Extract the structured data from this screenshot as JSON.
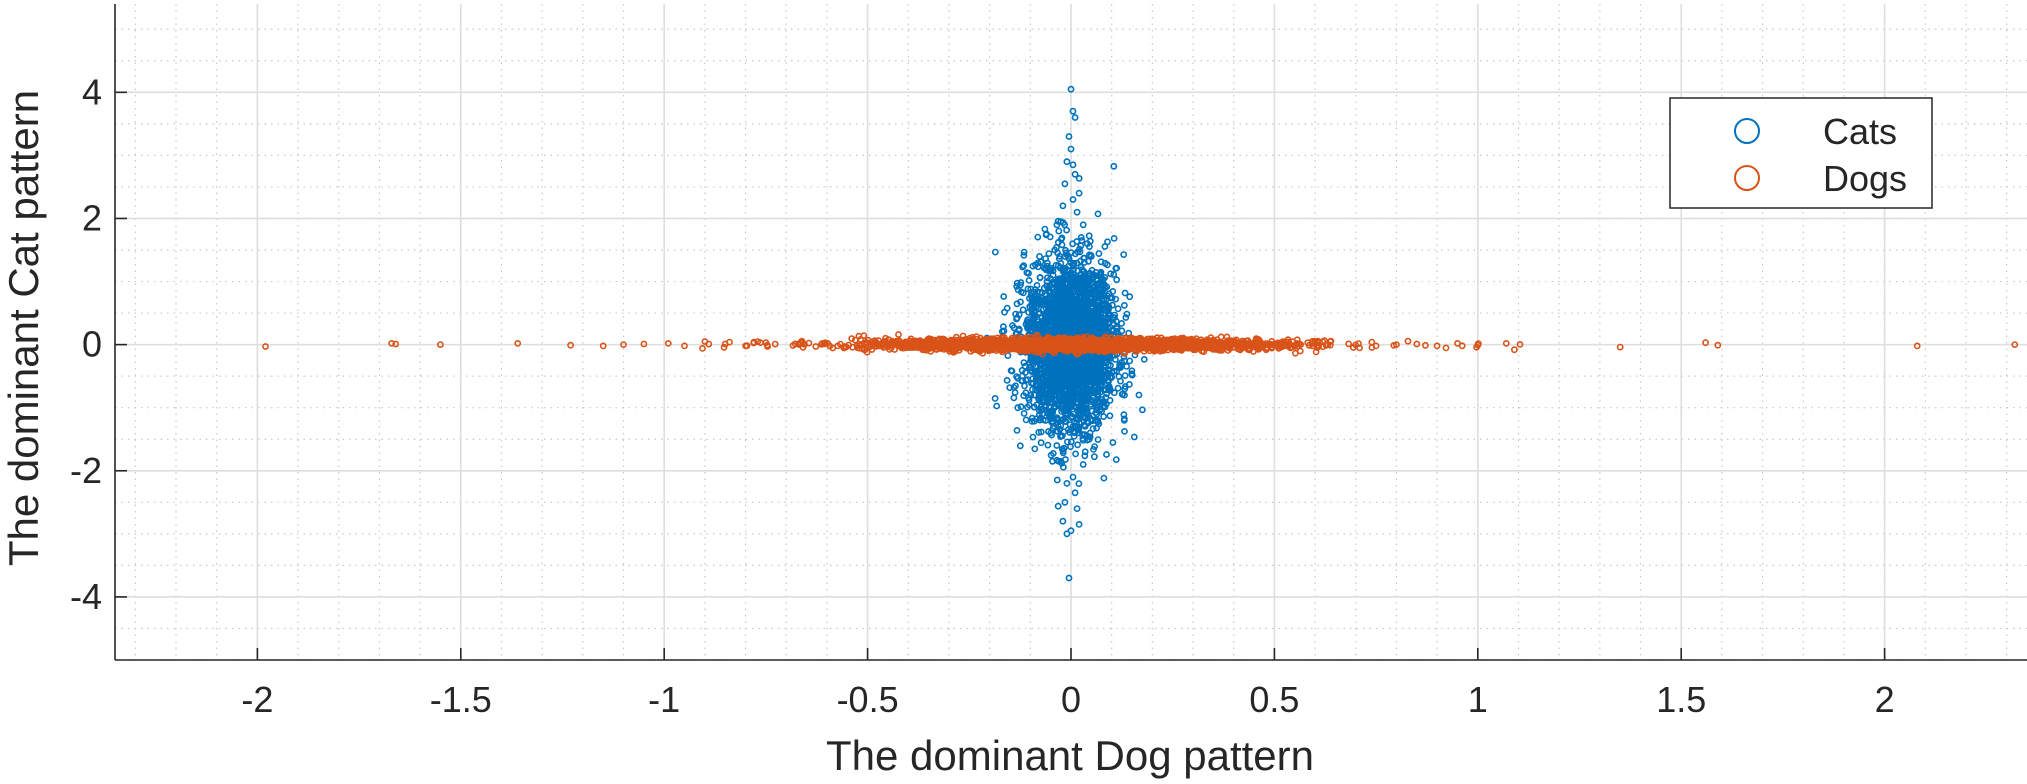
{
  "chart_data": {
    "type": "scatter",
    "title": "",
    "xlabel": "The dominant Dog pattern",
    "ylabel": "The dominant Cat pattern",
    "xlim": [
      -2.35,
      2.35
    ],
    "ylim": [
      -5,
      5.4
    ],
    "xticks": [
      -2,
      -1.5,
      -1,
      -0.5,
      0,
      0.5,
      1,
      1.5,
      2
    ],
    "xtick_labels": [
      "-2",
      "-1.5",
      "-1",
      "-0.5",
      "0",
      "0.5",
      "1",
      "1.5",
      "2"
    ],
    "yticks": [
      -4,
      -2,
      0,
      2,
      4
    ],
    "ytick_labels": [
      "-4",
      "-2",
      "0",
      "2",
      "4"
    ],
    "grid": true,
    "minor_grid": true,
    "legend_position": "top-right",
    "series": [
      {
        "name": "Cats",
        "color": "#0072BD",
        "marker": "circle-open",
        "x_spread_sd": 0.055,
        "y_spread_sd": 0.55,
        "n_points": 3000,
        "points": [
          [
            0.0,
            4.05
          ],
          [
            0.005,
            3.7
          ],
          [
            0.01,
            3.6
          ],
          [
            -0.005,
            3.3
          ],
          [
            0.0,
            3.1
          ],
          [
            -0.01,
            2.9
          ],
          [
            0.005,
            2.85
          ],
          [
            0.01,
            2.7
          ],
          [
            -0.015,
            2.55
          ],
          [
            0.02,
            2.4
          ],
          [
            0.005,
            2.3
          ],
          [
            -0.02,
            2.2
          ],
          [
            0.015,
            2.1
          ],
          [
            -0.025,
            1.95
          ],
          [
            0.03,
            1.9
          ],
          [
            -0.03,
            1.8
          ],
          [
            0.025,
            1.7
          ],
          [
            0.04,
            1.6
          ],
          [
            -0.04,
            1.5
          ],
          [
            0.05,
            1.4
          ],
          [
            -0.005,
            -3.7
          ],
          [
            -0.01,
            -3.0
          ],
          [
            0.0,
            -2.95
          ],
          [
            0.02,
            -2.85
          ],
          [
            -0.02,
            -2.8
          ],
          [
            0.015,
            -2.6
          ],
          [
            -0.015,
            -2.5
          ],
          [
            0.01,
            -2.35
          ],
          [
            -0.01,
            -2.2
          ],
          [
            0.005,
            -2.1
          ],
          [
            0.03,
            -1.9
          ],
          [
            -0.03,
            -1.85
          ],
          [
            0.035,
            -1.7
          ],
          [
            -0.035,
            -1.6
          ],
          [
            0.045,
            -1.5
          ],
          [
            -0.05,
            -1.4
          ],
          [
            0.06,
            -1.2
          ],
          [
            -0.07,
            -1.1
          ],
          [
            0.08,
            -0.9
          ],
          [
            -0.09,
            -0.8
          ]
        ]
      },
      {
        "name": "Dogs",
        "color": "#D95319",
        "marker": "circle-open",
        "x_spread_sd": 0.2,
        "y_spread_sd": 0.045,
        "n_points": 3000,
        "points": [
          [
            -1.98,
            -0.03
          ],
          [
            -1.67,
            0.02
          ],
          [
            -1.66,
            0.01
          ],
          [
            -1.55,
            0.0
          ],
          [
            -1.36,
            0.02
          ],
          [
            -1.23,
            -0.01
          ],
          [
            -1.15,
            -0.02
          ],
          [
            -1.1,
            0.0
          ],
          [
            -1.05,
            0.01
          ],
          [
            -0.99,
            0.02
          ],
          [
            -0.95,
            -0.02
          ],
          [
            -0.9,
            0.05
          ],
          [
            -0.85,
            0.01
          ],
          [
            -0.8,
            -0.02
          ],
          [
            -0.75,
            0.03
          ],
          [
            0.75,
            -0.02
          ],
          [
            0.8,
            0.0
          ],
          [
            0.85,
            0.01
          ],
          [
            0.9,
            -0.02
          ],
          [
            0.95,
            0.02
          ],
          [
            1.0,
            -0.01
          ],
          [
            1.07,
            0.02
          ],
          [
            1.09,
            -0.08
          ],
          [
            1.35,
            -0.04
          ],
          [
            1.56,
            0.03
          ],
          [
            1.59,
            -0.01
          ],
          [
            2.08,
            -0.02
          ],
          [
            2.32,
            0.0
          ]
        ]
      }
    ]
  }
}
